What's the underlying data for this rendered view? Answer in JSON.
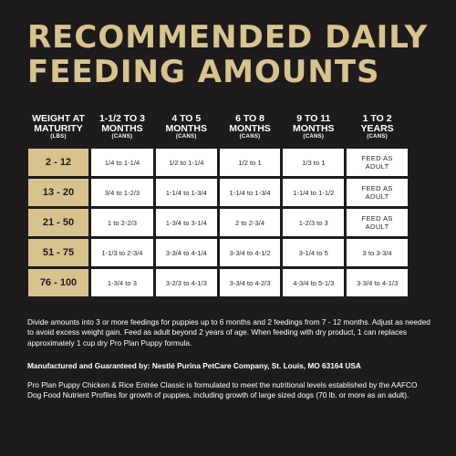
{
  "title": {
    "line1": "RECOMMENDED DAILY",
    "line2": "FEEDING AMOUNTS"
  },
  "table": {
    "headers": [
      {
        "line1": "WEIGHT AT",
        "line2": "MATURITY",
        "unit": "(LBS)"
      },
      {
        "line1": "1-1/2 TO 3",
        "line2": "MONTHS",
        "unit": "(CANS)"
      },
      {
        "line1": "4 TO 5",
        "line2": "MONTHS",
        "unit": "(CANS)"
      },
      {
        "line1": "6 TO 8",
        "line2": "MONTHS",
        "unit": "(CANS)"
      },
      {
        "line1": "9 TO 11",
        "line2": "MONTHS",
        "unit": "(CANS)"
      },
      {
        "line1": "1 TO 2",
        "line2": "YEARS",
        "unit": "(CANS)"
      }
    ],
    "rows": [
      {
        "weight": "2 - 12",
        "c1": "1/4 to 1-1/4",
        "c2": "1/2 to 1-1/4",
        "c3": "1/2 to 1",
        "c4": "1/3 to 1",
        "c5a": "FEED AS",
        "c5b": "ADULT"
      },
      {
        "weight": "13 - 20",
        "c1": "3/4 to 1-2/3",
        "c2": "1-1/4 to 1-3/4",
        "c3": "1-1/4 to 1-3/4",
        "c4": "1-1/4 to 1-1/2",
        "c5a": "FEED AS",
        "c5b": "ADULT"
      },
      {
        "weight": "21 - 50",
        "c1": "1 to 2-2/3",
        "c2": "1-3/4 to 3-1/4",
        "c3": "2 to 2-3/4",
        "c4": "1-2/3 to 3",
        "c5a": "FEED AS",
        "c5b": "ADULT"
      },
      {
        "weight": "51 - 75",
        "c1": "1-1/3 to 2-3/4",
        "c2": "3-3/4 to 4-1/4",
        "c3": "3-3/4 to 4-1/2",
        "c4": "3-1/4 to 5",
        "c5": "3 to 3-3/4"
      },
      {
        "weight": "76 - 100",
        "c1": "1-3/4 to 3",
        "c2": "3-2/3 to 4-1/3",
        "c3": "3-3/4 to 4-2/3",
        "c4": "4-3/4 to 5-1/3",
        "c5": "3-3/4 to 4-1/3"
      }
    ]
  },
  "notes": {
    "feeding": "Divide amounts into 3 or more feedings for puppies up to 6 months and 2 feedings from 7 - 12 months. Adjust as needed to avoid excess weight gain. Feed as adult beyond 2 years of age. When feeding with dry product, 1 can replaces approximately 1 cup dry Pro Plan Puppy formula.",
    "manufacturer": "Manufactured and Guaranteed by: Nestlé Purina PetCare Company, St. Louis, MO 63164 USA",
    "aafco": "Pro Plan Puppy Chicken & Rice Entrée Classic is formulated to meet the nutritional levels established by the AAFCO Dog Food Nutrient Profiles for growth of puppies, including growth of large sized dogs (70 lb. or more as an adult)."
  },
  "colors": {
    "background": "#1d1b1c",
    "accent_gold": "#d8c38f",
    "cell": "#ffffff"
  }
}
